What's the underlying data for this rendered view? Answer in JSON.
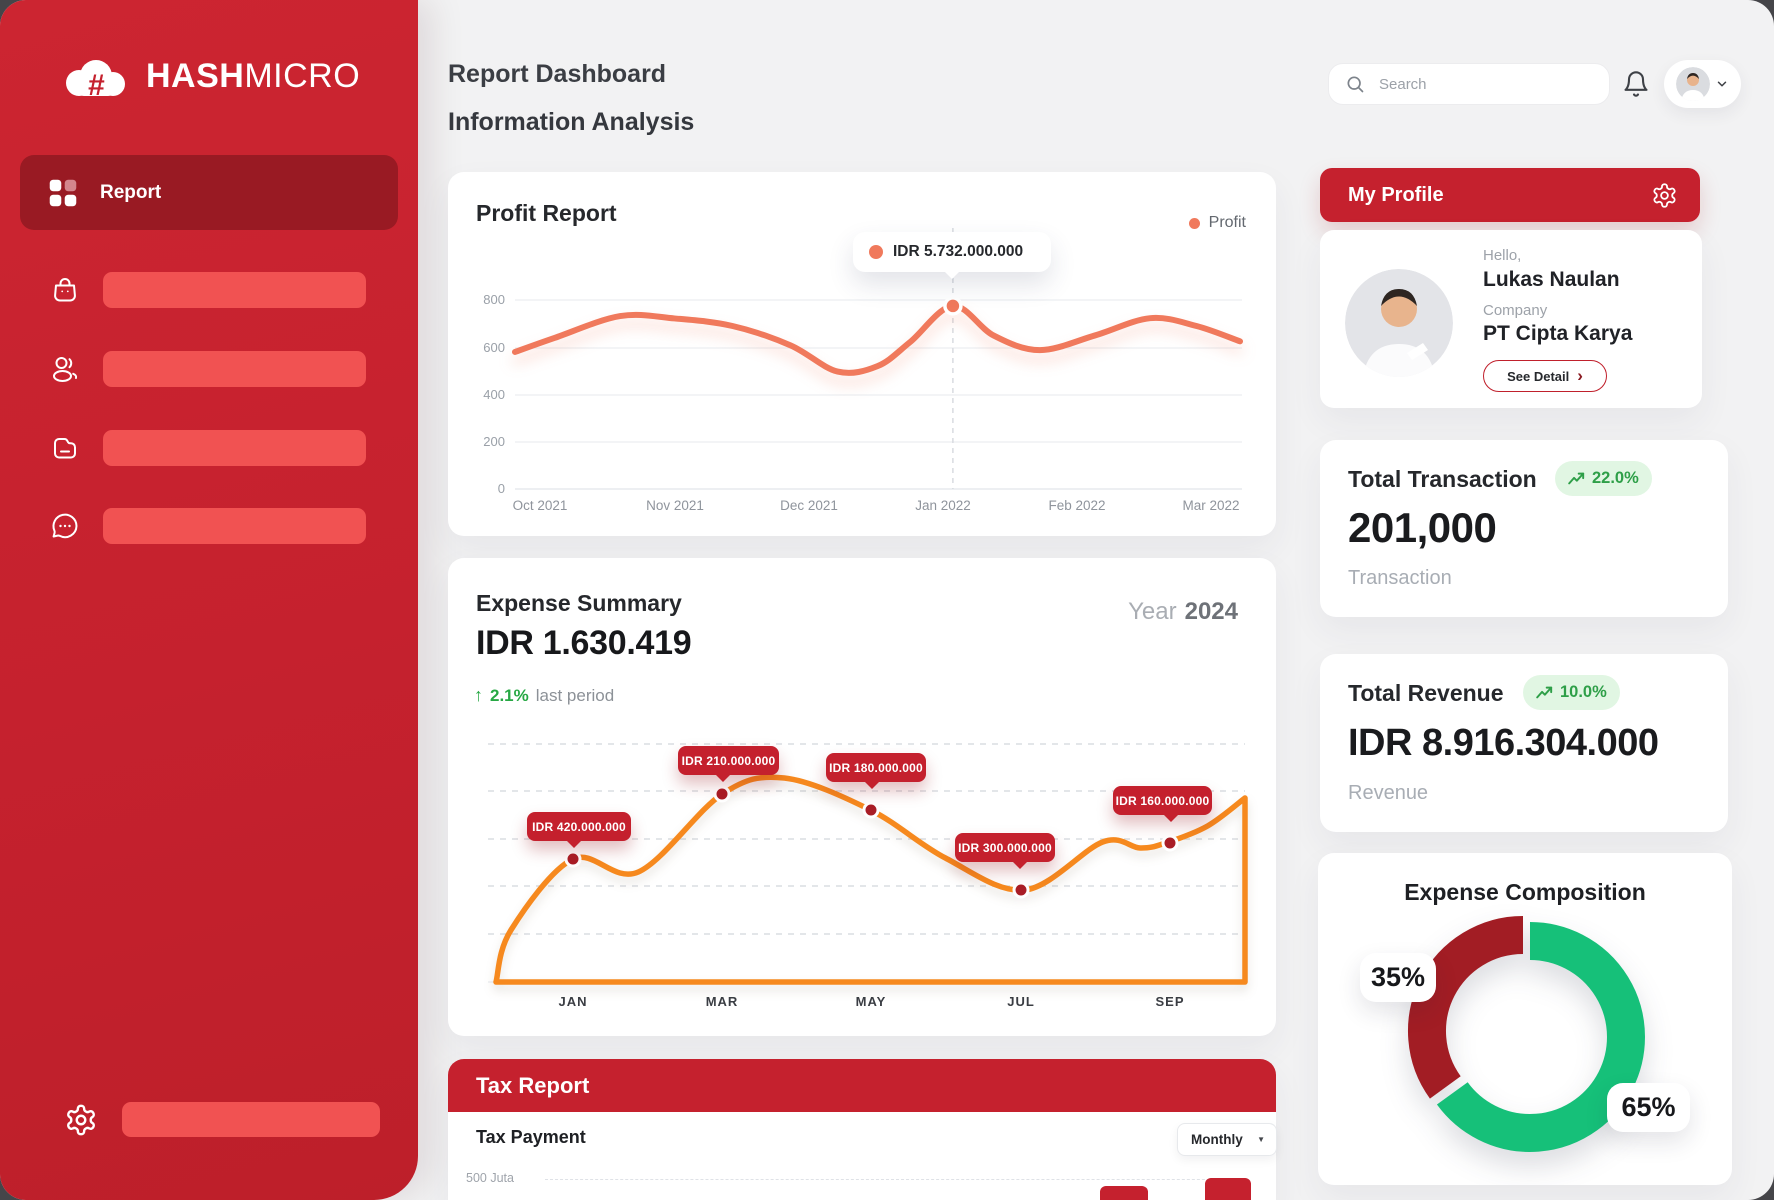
{
  "frame": {
    "background": "#454549",
    "app_background": "#F2F2F3"
  },
  "sidebar": {
    "background": "#C5212E",
    "active_background": "#991A23",
    "pill_color": "#F15252",
    "brand": {
      "bold": "HASH",
      "light": "MICRO",
      "symbol": "#"
    },
    "active_item": {
      "label": "Report",
      "icon": "grid-icon"
    },
    "menu_placeholders": [
      {
        "icon": "shopping-bag-icon"
      },
      {
        "icon": "users-icon"
      },
      {
        "icon": "folder-icon"
      },
      {
        "icon": "chat-icon"
      }
    ],
    "bottom_item": {
      "icon": "gear-icon"
    }
  },
  "header": {
    "title": "Report Dashboard",
    "subtitle": "Information Analysis",
    "search_placeholder": "Search"
  },
  "profit_report": {
    "type": "line",
    "title": "Profit Report",
    "legend_label": "Profit",
    "line_color": "#F0795C",
    "tooltip": {
      "value": "IDR 5.732.000.000"
    },
    "y_ticks": [
      "800",
      "600",
      "400",
      "200",
      "0"
    ],
    "x_labels": [
      "Oct 2021",
      "Nov 2021",
      "Dec 2021",
      "Jan 2022",
      "Feb 2022",
      "Mar 2022"
    ],
    "y_range": [
      0,
      800
    ],
    "curve": [
      [
        0,
        580
      ],
      [
        0.055,
        640
      ],
      [
        0.145,
        732
      ],
      [
        0.22,
        722
      ],
      [
        0.3,
        690
      ],
      [
        0.38,
        608
      ],
      [
        0.445,
        497
      ],
      [
        0.5,
        520
      ],
      [
        0.545,
        622
      ],
      [
        0.604,
        775
      ],
      [
        0.66,
        650
      ],
      [
        0.724,
        588
      ],
      [
        0.8,
        650
      ],
      [
        0.876,
        723
      ],
      [
        0.94,
        690
      ],
      [
        1,
        625
      ]
    ],
    "highlight_index": 9
  },
  "expense_summary": {
    "type": "line",
    "title": "Expense Summary",
    "year_label": "Year",
    "year_value": "2024",
    "amount": "IDR 1.630.419",
    "change": "2.1%",
    "change_note": "last period",
    "line_color": "#F6891E",
    "months": [
      "JAN",
      "MAR",
      "MAY",
      "JUL",
      "SEP"
    ],
    "callouts": [
      "IDR 420.000.000",
      "IDR 210.000.000",
      "IDR 180.000.000",
      "IDR 300.000.000",
      "IDR 160.000.000"
    ],
    "curve": [
      [
        0,
        424
      ],
      [
        0.02,
        372
      ],
      [
        0.103,
        301
      ],
      [
        0.19,
        314
      ],
      [
        0.302,
        236
      ],
      [
        0.385,
        220
      ],
      [
        0.5,
        252
      ],
      [
        0.6,
        300
      ],
      [
        0.706,
        332
      ],
      [
        0.81,
        284
      ],
      [
        0.86,
        290
      ],
      [
        0.894,
        285
      ],
      [
        0.95,
        268
      ],
      [
        1,
        240
      ]
    ],
    "dots": [
      [
        125,
        301
      ],
      [
        274,
        236
      ],
      [
        423,
        252
      ],
      [
        573,
        332
      ],
      [
        722,
        285
      ]
    ]
  },
  "tax_report": {
    "type": "bar",
    "title": "Tax Report",
    "subtitle": "Tax Payment",
    "period_selector": "Monthly",
    "y_label": "500 Juta",
    "bar_color": "#C5212E"
  },
  "profile": {
    "header": "My Profile",
    "greeting": "Hello,",
    "name": "Lukas Naulan",
    "company_label": "Company",
    "company": "PT Cipta Karya",
    "see_detail": "See Detail",
    "chevron": "›"
  },
  "stats": {
    "transaction": {
      "title": "Total Transaction",
      "change": "22.0%",
      "value": "201,000",
      "caption": "Transaction"
    },
    "revenue": {
      "title": "Total Revenue",
      "change": "10.0%",
      "value": "IDR 8.916.304.000",
      "caption": "Revenue"
    }
  },
  "expense_composition": {
    "type": "pie",
    "title": "Expense Composition",
    "slices": [
      {
        "label": "35%",
        "value": 35,
        "color": "#A21D24"
      },
      {
        "label": "65%",
        "value": 65,
        "color": "#16C079"
      }
    ]
  }
}
